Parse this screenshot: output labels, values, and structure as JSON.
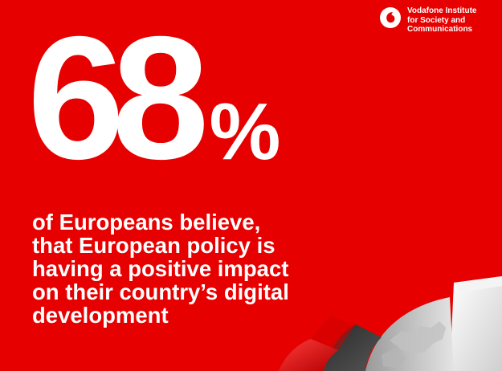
{
  "brand": {
    "logo_icon": "vodafone-speechmark-icon",
    "name_lines": [
      "Vodafone Institute",
      "for Society and",
      "Communications"
    ]
  },
  "stat": {
    "number": "68",
    "unit": "%"
  },
  "statement": {
    "lines": [
      "of Europeans believe,",
      "that European policy is",
      "having a positive impact",
      "on their country’s digital",
      "development"
    ]
  },
  "graphic": {
    "icon": "europe-globe-3d-icon"
  },
  "colors": {
    "background": "#e60000",
    "text": "#ffffff",
    "accent_dark": "#3a3a3a"
  }
}
